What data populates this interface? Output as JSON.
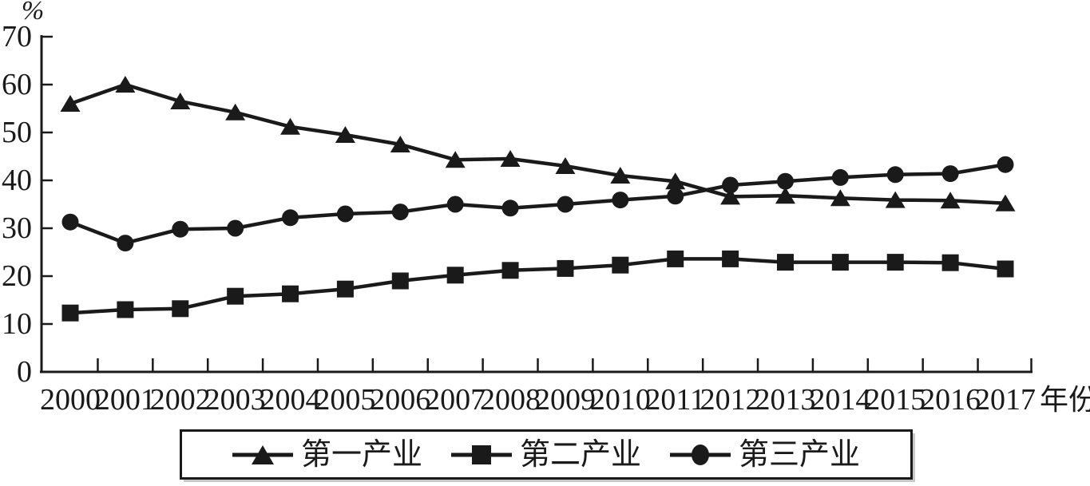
{
  "chart_data": {
    "type": "line",
    "title": "",
    "ylabel": "%",
    "xlabel": "年份",
    "ylim": [
      0,
      70
    ],
    "yticks": [
      0,
      10,
      20,
      30,
      40,
      50,
      60,
      70
    ],
    "grid": false,
    "legend_position": "bottom",
    "line_color": "#1a1a1a",
    "background": "#ffffff",
    "x": [
      2000,
      2001,
      2002,
      2003,
      2004,
      2005,
      2006,
      2007,
      2008,
      2009,
      2010,
      2011,
      2012,
      2013,
      2014,
      2015,
      2016,
      2017
    ],
    "series": [
      {
        "name": "第一产业",
        "key": "primary-industry",
        "marker": "triangle",
        "color": "#1a1a1a",
        "values": [
          56.0,
          60.0,
          56.5,
          54.2,
          51.2,
          49.5,
          47.5,
          44.3,
          44.5,
          43.0,
          41.0,
          39.8,
          36.6,
          36.8,
          36.3,
          35.9,
          35.8,
          35.2
        ]
      },
      {
        "name": "第二产业",
        "key": "secondary-industry",
        "marker": "square",
        "color": "#1a1a1a",
        "values": [
          12.3,
          13.0,
          13.2,
          15.8,
          16.3,
          17.3,
          19.0,
          20.2,
          21.2,
          21.6,
          22.3,
          23.6,
          23.6,
          22.9,
          22.9,
          22.9,
          22.8,
          21.5
        ]
      },
      {
        "name": "第三产业",
        "key": "tertiary-industry",
        "marker": "circle",
        "color": "#1a1a1a",
        "values": [
          31.3,
          26.9,
          29.8,
          30.0,
          32.2,
          33.0,
          33.4,
          35.0,
          34.2,
          35.0,
          35.9,
          36.7,
          39.0,
          39.8,
          40.6,
          41.2,
          41.4,
          43.3
        ]
      }
    ]
  },
  "legend": {
    "items": [
      {
        "label": "第一产业",
        "marker": "triangle"
      },
      {
        "label": "第二产业",
        "marker": "square"
      },
      {
        "label": "第三产业",
        "marker": "circle"
      }
    ]
  }
}
